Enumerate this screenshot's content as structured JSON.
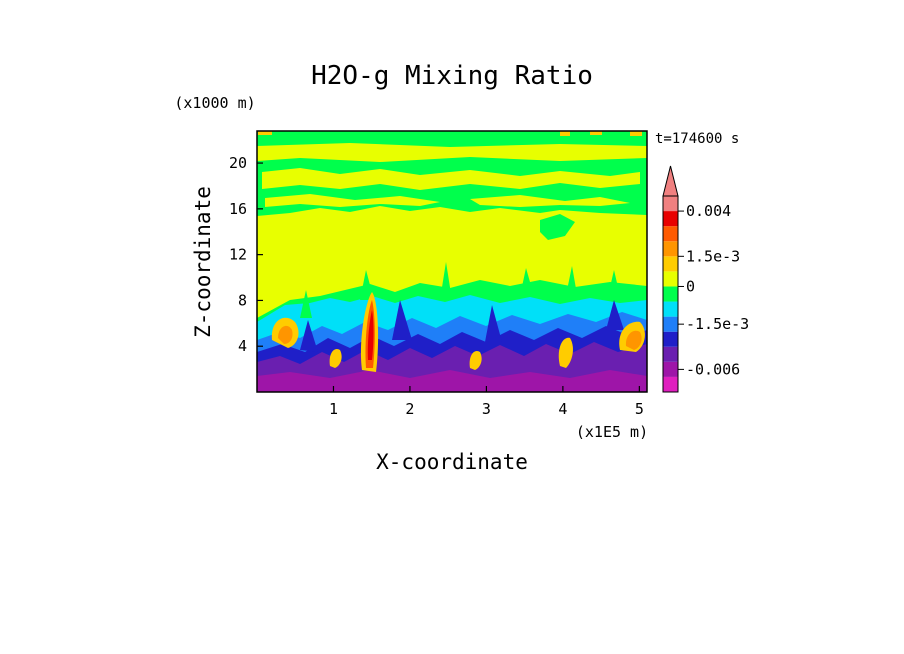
{
  "chart_data": {
    "type": "heatmap",
    "title": "H2O-g Mixing Ratio",
    "xlabel": "X-coordinate",
    "ylabel": "Z-coordinate",
    "x_unit": "(x1E5 m)",
    "y_unit": "(x1000 m)",
    "time_label": "t=174600 s",
    "xlim": [
      0,
      5.1
    ],
    "ylim": [
      0,
      22.8
    ],
    "x_ticks": [
      {
        "value": 1,
        "label": "1"
      },
      {
        "value": 2,
        "label": "2"
      },
      {
        "value": 3,
        "label": "3"
      },
      {
        "value": 4,
        "label": "4"
      },
      {
        "value": 5,
        "label": "5"
      }
    ],
    "y_ticks": [
      {
        "value": 4,
        "label": "4"
      },
      {
        "value": 8,
        "label": "8"
      },
      {
        "value": 12,
        "label": "12"
      },
      {
        "value": 16,
        "label": "16"
      },
      {
        "value": 20,
        "label": "20"
      }
    ],
    "colorbar": {
      "levels": [
        "#e01fbf",
        "#9e15a8",
        "#6a1fb0",
        "#1f1fc8",
        "#1f7ff8",
        "#00e0f8",
        "#00ff4c",
        "#e8ff00",
        "#ffcc00",
        "#ff9500",
        "#ff5a00",
        "#e80000",
        "#f08080"
      ],
      "labels": [
        {
          "at": 12,
          "text": "0.004"
        },
        {
          "at": 9,
          "text": "1.5e-3"
        },
        {
          "at": 7,
          "text": "0"
        },
        {
          "at": 4.5,
          "text": "-1.5e-3"
        },
        {
          "at": 1.5,
          "text": "-0.006"
        }
      ],
      "extend": "max",
      "placement": "right"
    },
    "field_bands": [
      {
        "z_range": [
          0,
          3
        ],
        "level": "mostly negative (purple/blue)"
      },
      {
        "z_range": [
          3,
          9
        ],
        "level": "mixed (blue/cyan/green with orange plumes)"
      },
      {
        "z_range": [
          9,
          15
        ],
        "level": "~0 (yellow)"
      },
      {
        "z_range": [
          15,
          22.8
        ],
        "level": "green/yellow banded"
      }
    ]
  }
}
